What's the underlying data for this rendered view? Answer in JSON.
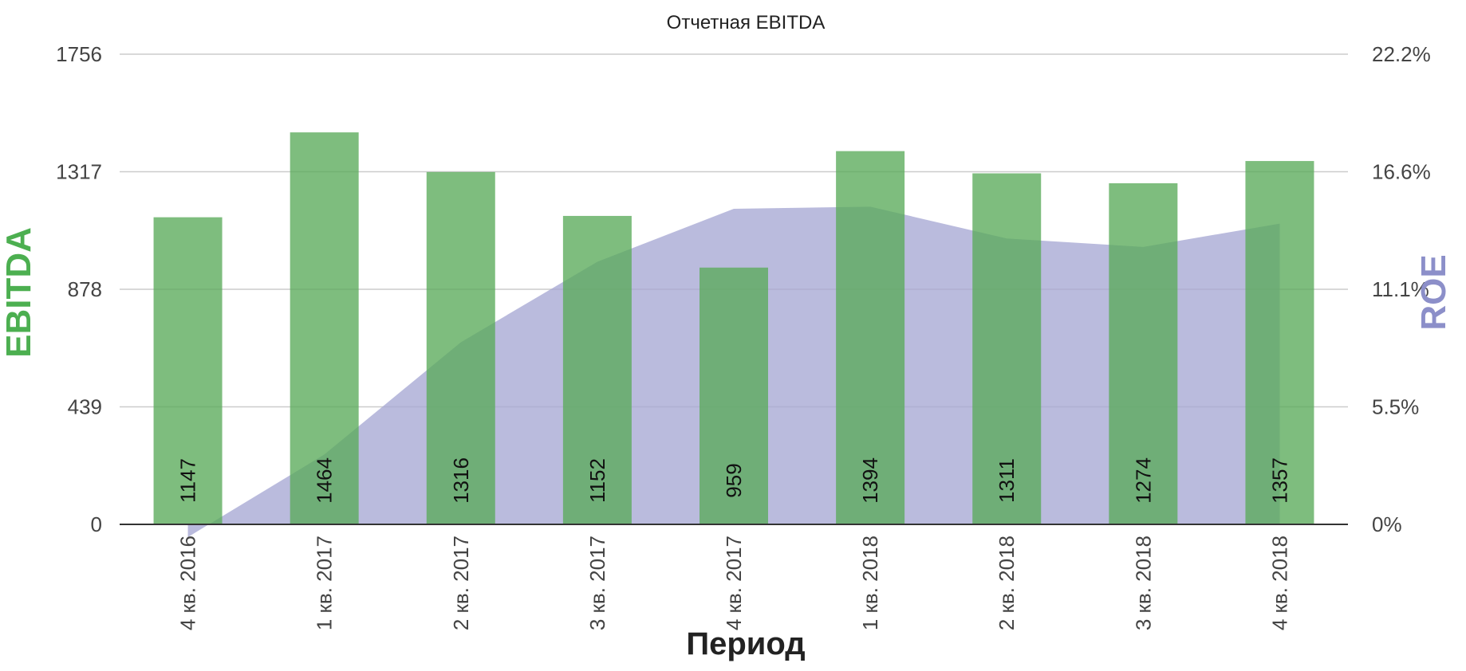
{
  "chart_data": {
    "type": "bar",
    "title": "Отчетная EBITDA",
    "xlabel": "Период",
    "ylabel": "EBITDA",
    "y2label": "ROE",
    "categories": [
      "4 кв. 2016",
      "1 кв. 2017",
      "2 кв. 2017",
      "3 кв. 2017",
      "4 кв. 2017",
      "1 кв. 2018",
      "2 кв. 2018",
      "3 кв. 2018",
      "4 кв. 2018"
    ],
    "series": [
      {
        "name": "EBITDA",
        "type": "bar",
        "axis": "left",
        "color": "#5aab5a",
        "values": [
          1147,
          1464,
          1316,
          1152,
          959,
          1394,
          1311,
          1274,
          1357
        ],
        "data_labels": [
          "1147",
          "1464",
          "1316",
          "1152",
          "959",
          "1394",
          "1311",
          "1274",
          "1357"
        ]
      },
      {
        "name": "ROE",
        "type": "area",
        "axis": "right",
        "color": "#a7a8d4",
        "values": [
          -0.6,
          3.3,
          8.6,
          12.4,
          14.9,
          15.0,
          13.5,
          13.1,
          14.2
        ]
      }
    ],
    "ylim": [
      0,
      1756
    ],
    "y_ticks": [
      "0",
      "439",
      "878",
      "1317",
      "1756"
    ],
    "y2lim": [
      0,
      22.2
    ],
    "y2_ticks": [
      "0%",
      "5.5%",
      "11.1%",
      "16.6%",
      "22.2%"
    ],
    "grid": true,
    "legend": "none",
    "colors": {
      "ebitda_axis_title": "#4caf50",
      "roe_axis_title": "#8c8fc9",
      "grid": "#cccccc",
      "baseline": "#333333"
    }
  }
}
